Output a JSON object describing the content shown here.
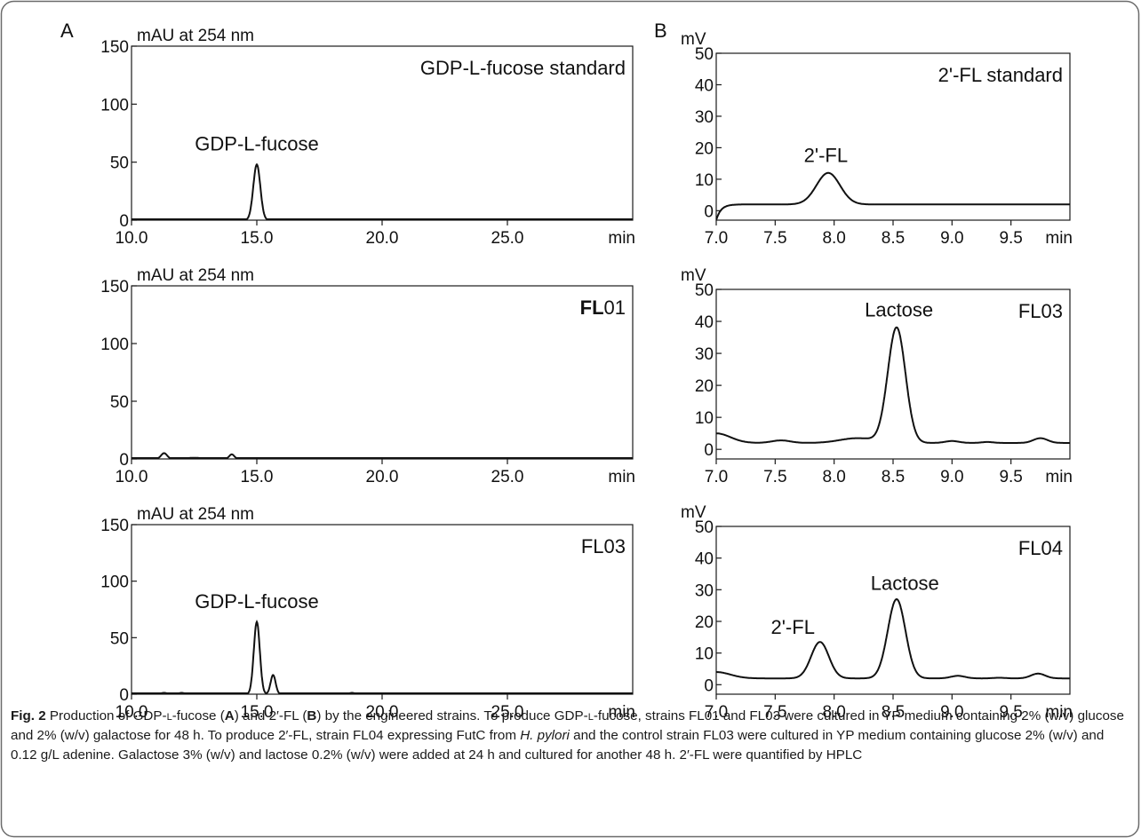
{
  "figure": {
    "caption": {
      "label": "Fig. 2",
      "p1": " Production of GDP-",
      "L1": "l",
      "p2": "-fucose (",
      "bA": "A",
      "p3": ") and 2′-FL (",
      "bB": "B",
      "p4": ") by the engineered strains. To produce GDP-",
      "L2": "l",
      "p5": "-fucose, strains FL01 and FL03 were cultured in YP medium containing 2% (w/v) glucose and 2% (w/v) galactose for 48 h. To produce 2′-FL, strain FL04 expressing FutC from ",
      "italic": "H. pylori",
      "p6": " and the control strain FL03 were cultured in YP medium containing glucose 2% (w/v) and 0.12 g/L adenine. Galactose 3% (w/v) and lactose 0.2% (w/v) were added at 24 h and cultured for another 48 h. 2′-FL were quantified by HPLC"
    }
  },
  "chart_data": [
    {
      "type": "line",
      "panel": "A",
      "ylabel": "mAU at 254 nm",
      "xunit": "min",
      "xlim": [
        10,
        30
      ],
      "ylim": [
        0,
        150
      ],
      "xticks": [
        10,
        15,
        20,
        25
      ],
      "xtick_labels": [
        "10.0",
        "15.0",
        "20.0",
        "25.0"
      ],
      "yticks": [
        0,
        50,
        100,
        150
      ],
      "ytick_labels": [
        "0",
        "50",
        "100",
        "150"
      ],
      "sample_label": "GDP-L-fucose standard",
      "baseline": 0,
      "peaks": [
        {
          "x": 15.0,
          "height": 48,
          "width": 0.14
        }
      ],
      "annotations": [
        {
          "text": "GDP-L-fucose",
          "x": 15.0,
          "y": 60
        }
      ],
      "series": [
        {
          "x": [
            10.0,
            14.6,
            14.85,
            15.0,
            15.15,
            15.4,
            30.0
          ],
          "y": [
            0,
            0,
            18,
            48,
            18,
            0,
            0
          ]
        }
      ]
    },
    {
      "type": "line",
      "panel": "A",
      "ylabel": "mAU at 254 nm",
      "xunit": "min",
      "xlim": [
        10,
        30
      ],
      "ylim": [
        0,
        150
      ],
      "xticks": [
        10,
        15,
        20,
        25
      ],
      "xtick_labels": [
        "10.0",
        "15.0",
        "20.0",
        "25.0"
      ],
      "yticks": [
        0,
        50,
        100,
        150
      ],
      "ytick_labels": [
        "0",
        "50",
        "100",
        "150"
      ],
      "sample_label": "FL01",
      "baseline": 0,
      "peaks": [
        {
          "x": 11.3,
          "height": 5,
          "width": 0.12
        },
        {
          "x": 14.0,
          "height": 4,
          "width": 0.1
        },
        {
          "x": 12.5,
          "height": 1,
          "width": 0.3
        },
        {
          "x": 16.5,
          "height": 0.8,
          "width": 0.5
        },
        {
          "x": 24.5,
          "height": 0.8,
          "width": 1.0
        }
      ],
      "annotations": [],
      "series": [
        {
          "x": [
            10.0,
            11.1,
            11.3,
            11.5,
            13.8,
            14.0,
            14.2,
            30.0
          ],
          "y": [
            0,
            0.5,
            5,
            0.5,
            0.5,
            4,
            0.5,
            0
          ]
        }
      ]
    },
    {
      "type": "line",
      "panel": "A",
      "ylabel": "mAU at 254 nm",
      "xunit": "min",
      "xlim": [
        10,
        30
      ],
      "ylim": [
        0,
        150
      ],
      "xticks": [
        10,
        15,
        20,
        25
      ],
      "xtick_labels": [
        "10.0",
        "15.0",
        "20.0",
        "25.0"
      ],
      "yticks": [
        0,
        50,
        100,
        150
      ],
      "ytick_labels": [
        "0",
        "50",
        "100",
        "150"
      ],
      "sample_label": "FL03",
      "baseline": 0,
      "peaks": [
        {
          "x": 15.0,
          "height": 64,
          "width": 0.12
        },
        {
          "x": 15.65,
          "height": 17,
          "width": 0.1
        },
        {
          "x": 11.3,
          "height": 1.2,
          "width": 0.12
        },
        {
          "x": 12.0,
          "height": 1.2,
          "width": 0.12
        },
        {
          "x": 13.8,
          "height": 0.8,
          "width": 0.12
        },
        {
          "x": 18.8,
          "height": 1.2,
          "width": 0.12
        }
      ],
      "annotations": [
        {
          "text": "GDP-L-fucose",
          "x": 15.0,
          "y": 76
        }
      ],
      "series": [
        {
          "x": [
            10.0,
            14.7,
            15.0,
            15.3,
            15.45,
            15.65,
            15.85,
            30.0
          ],
          "y": [
            0,
            0,
            64,
            0,
            0,
            17,
            0,
            0
          ]
        }
      ]
    },
    {
      "type": "line",
      "panel": "B",
      "ylabel": "mV",
      "xunit": "min",
      "xlim": [
        7.0,
        10.0
      ],
      "ylim": [
        -3,
        50
      ],
      "xticks": [
        7.0,
        7.5,
        8.0,
        8.5,
        9.0,
        9.5
      ],
      "xtick_labels": [
        "7.0",
        "7.5",
        "8.0",
        "8.5",
        "9.0",
        "9.5"
      ],
      "yticks": [
        0,
        10,
        20,
        30,
        40,
        50
      ],
      "ytick_labels": [
        "0",
        "10",
        "20",
        "30",
        "40",
        "50"
      ],
      "sample_label": "2'-FL standard",
      "baseline": 2,
      "peaks": [
        {
          "x": 7.95,
          "height": 10,
          "width": 0.1
        }
      ],
      "annotations": [
        {
          "text": "2'-FL",
          "x": 7.93,
          "y": 15.5
        }
      ],
      "series": [
        {
          "x": [
            7.0,
            7.1,
            7.3,
            7.75,
            7.95,
            8.15,
            8.4,
            10.0
          ],
          "y": [
            -3,
            1.5,
            2,
            2,
            12,
            2,
            2,
            2
          ]
        }
      ]
    },
    {
      "type": "line",
      "panel": "B",
      "ylabel": "mV",
      "xunit": "min",
      "xlim": [
        7.0,
        10.0
      ],
      "ylim": [
        -3,
        50
      ],
      "xticks": [
        7.0,
        7.5,
        8.0,
        8.5,
        9.0,
        9.5
      ],
      "xtick_labels": [
        "7.0",
        "7.5",
        "8.0",
        "8.5",
        "9.0",
        "9.5"
      ],
      "yticks": [
        0,
        10,
        20,
        30,
        40,
        50
      ],
      "ytick_labels": [
        "0",
        "10",
        "20",
        "30",
        "40",
        "50"
      ],
      "sample_label": "FL03",
      "baseline": 2,
      "peaks": [
        {
          "x": 8.53,
          "height": 36,
          "width": 0.075
        },
        {
          "x": 7.0,
          "height": 3,
          "width": 0.12
        },
        {
          "x": 7.55,
          "height": 0.8,
          "width": 0.08
        },
        {
          "x": 8.2,
          "height": 1.5,
          "width": 0.15
        },
        {
          "x": 9.0,
          "height": 0.6,
          "width": 0.06
        },
        {
          "x": 9.3,
          "height": 0.3,
          "width": 0.05
        },
        {
          "x": 9.75,
          "height": 1.5,
          "width": 0.06
        }
      ],
      "annotations": [
        {
          "text": "Lactose",
          "x": 8.55,
          "y": 41.5
        }
      ],
      "series": [
        {
          "x": [
            7.0,
            7.5,
            8.0,
            8.35,
            8.53,
            8.72,
            9.0,
            9.75,
            10.0
          ],
          "y": [
            5,
            2.5,
            2,
            3,
            38,
            3,
            2,
            3,
            1.5
          ]
        }
      ]
    },
    {
      "type": "line",
      "panel": "B",
      "ylabel": "mV",
      "xunit": "min",
      "xlim": [
        7.0,
        10.0
      ],
      "ylim": [
        -3,
        50
      ],
      "xticks": [
        7.0,
        7.5,
        8.0,
        8.5,
        9.0,
        9.5
      ],
      "xtick_labels": [
        "7.0",
        "7.5",
        "8.0",
        "8.5",
        "9.0",
        "9.5"
      ],
      "yticks": [
        0,
        10,
        20,
        30,
        40,
        50
      ],
      "ytick_labels": [
        "0",
        "10",
        "20",
        "30",
        "40",
        "50"
      ],
      "sample_label": "FL04",
      "baseline": 2,
      "peaks": [
        {
          "x": 7.88,
          "height": 11.5,
          "width": 0.075
        },
        {
          "x": 8.53,
          "height": 25,
          "width": 0.075
        },
        {
          "x": 7.0,
          "height": 2,
          "width": 0.12
        },
        {
          "x": 9.05,
          "height": 0.8,
          "width": 0.06
        },
        {
          "x": 9.4,
          "height": 0.2,
          "width": 0.05
        },
        {
          "x": 9.73,
          "height": 1.5,
          "width": 0.06
        }
      ],
      "annotations": [
        {
          "text": "2'-FL",
          "x": 7.65,
          "y": 16
        },
        {
          "text": "Lactose",
          "x": 8.6,
          "y": 30
        }
      ],
      "series": [
        {
          "x": [
            7.0,
            7.7,
            7.88,
            8.05,
            8.35,
            8.53,
            8.72,
            9.0,
            9.73,
            10.0
          ],
          "y": [
            4,
            2,
            13.5,
            2,
            2,
            27,
            2,
            2,
            3,
            1
          ]
        }
      ]
    }
  ],
  "panel_letters": [
    "A",
    "B"
  ]
}
